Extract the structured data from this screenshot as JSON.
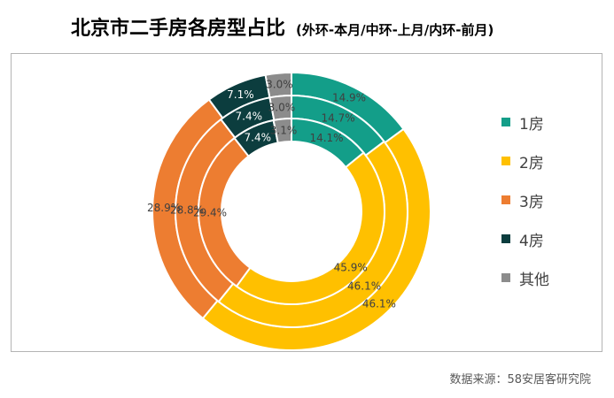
{
  "chart_data": {
    "type": "pie",
    "title": "北京市二手房各房型占比",
    "subtitle": "(外环-本月/中环-上月/内环-前月)",
    "categories": [
      "1房",
      "2房",
      "3房",
      "4房",
      "其他"
    ],
    "colors": [
      "#139e89",
      "#ffc000",
      "#ed7d31",
      "#0c3d3e",
      "#8c8c8c"
    ],
    "label_colors": [
      "#404040",
      "#404040",
      "#404040",
      "#ffffff",
      "#404040"
    ],
    "series": [
      {
        "values": [
          14.9,
          46.1,
          28.9,
          7.1,
          3.0
        ],
        "labels": [
          "14.9%",
          "46.1%",
          "28.9%",
          "7.1%",
          "3.0%"
        ]
      },
      {
        "values": [
          14.7,
          46.1,
          28.8,
          7.4,
          3.0
        ],
        "labels": [
          "14.7%",
          "46.1%",
          "28.8%",
          "7.4%",
          "3.0%"
        ]
      },
      {
        "values": [
          14.1,
          45.9,
          29.4,
          7.4,
          3.1
        ],
        "labels": [
          "14.1%",
          "45.9%",
          "29.4%",
          "7.4%",
          "3.1%"
        ]
      }
    ]
  },
  "source": "数据来源：58安居客研究院"
}
